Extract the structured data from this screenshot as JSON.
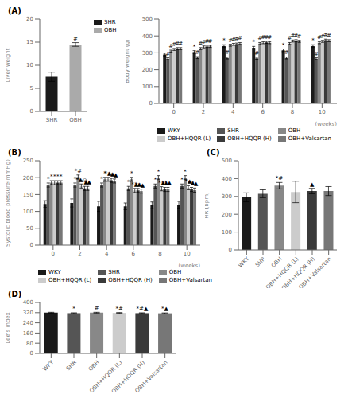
{
  "chart_data": [
    {
      "type": "bar",
      "title": "(A)",
      "categories": [
        "SHR",
        "OBH"
      ],
      "values": [
        7.5,
        14.5
      ],
      "errors": [
        1.0,
        0.4
      ],
      "colors": [
        "#1a1a1a",
        "#aaaaaa"
      ],
      "ylabel": "Liver weight",
      "ylim": [
        0,
        20
      ],
      "yticks": [
        0,
        5,
        10,
        15,
        20
      ],
      "annotations": [
        null,
        "#"
      ],
      "legend": "right"
    },
    {
      "type": "bar",
      "categories": [
        0,
        2,
        4,
        6,
        8,
        10
      ],
      "xlabel": "(weeks)",
      "ylabel": "Body weight (g)",
      "ylim": [
        0,
        500
      ],
      "yticks": [
        0,
        100,
        200,
        300,
        400,
        500
      ],
      "legend": "bottom",
      "series": [
        {
          "name": "WKY",
          "color": "#1a1a1a",
          "values": [
            290,
            305,
            340,
            330,
            315,
            340
          ],
          "errors": [
            8,
            8,
            8,
            8,
            8,
            8
          ],
          "annotations": [
            null,
            "*",
            "*",
            "*",
            "*",
            "*"
          ]
        },
        {
          "name": "SHR",
          "color": "#555555",
          "values": [
            265,
            272,
            270,
            268,
            270,
            265
          ],
          "errors": [
            6,
            6,
            6,
            6,
            6,
            6
          ],
          "annotations": [
            "#",
            "#",
            "#",
            "#",
            "#",
            "#"
          ]
        },
        {
          "name": "OBH",
          "color": "#888888",
          "values": [
            310,
            325,
            345,
            355,
            355,
            360
          ],
          "errors": [
            6,
            6,
            6,
            6,
            6,
            6
          ],
          "annotations": [
            "#",
            "#",
            "#",
            "#",
            "#",
            "#"
          ]
        },
        {
          "name": "OBH+HQQR (L)",
          "color": "#cccccc",
          "values": [
            320,
            335,
            350,
            360,
            370,
            368
          ],
          "errors": [
            6,
            6,
            6,
            6,
            6,
            6
          ],
          "annotations": [
            "#",
            "#",
            "#",
            "#",
            "#",
            "#"
          ]
        },
        {
          "name": "OBH+HQQR (H)",
          "color": "#3a3a3a",
          "values": [
            325,
            338,
            352,
            362,
            372,
            375
          ],
          "errors": [
            6,
            6,
            6,
            6,
            6,
            6
          ],
          "annotations": [
            "#",
            "#",
            "#",
            "#",
            "#",
            "#"
          ]
        },
        {
          "name": "OBH+Valsartan",
          "color": "#777777",
          "values": [
            325,
            338,
            355,
            360,
            368,
            372
          ],
          "errors": [
            6,
            6,
            6,
            6,
            6,
            6
          ],
          "annotations": [
            "#",
            "#",
            "#",
            "#",
            "#",
            "#"
          ]
        }
      ]
    },
    {
      "type": "bar",
      "title": "(B)",
      "categories": [
        0,
        2,
        4,
        6,
        8,
        10
      ],
      "xlabel": "(weeks)",
      "ylabel": "Systolic blood pressure(mmHg)",
      "ylim": [
        0,
        250
      ],
      "yticks": [
        0,
        50,
        100,
        150,
        200,
        250
      ],
      "legend": "bottom",
      "series": [
        {
          "name": "WKY",
          "color": "#1a1a1a",
          "values": [
            122,
            125,
            115,
            115,
            118,
            120
          ],
          "errors": [
            10,
            12,
            15,
            10,
            10,
            10
          ]
        },
        {
          "name": "SHR",
          "color": "#555555",
          "values": [
            178,
            178,
            178,
            168,
            175,
            175
          ],
          "errors": [
            6,
            6,
            6,
            6,
            6,
            6
          ],
          "annotations": [
            "*",
            "*",
            "*",
            "*",
            "*",
            "*"
          ]
        },
        {
          "name": "OBH",
          "color": "#888888",
          "values": [
            185,
            202,
            195,
            195,
            200,
            200
          ],
          "errors": [
            6,
            6,
            6,
            6,
            6,
            6
          ],
          "annotations": [
            "*",
            "*#",
            "*",
            "*",
            "*",
            "*"
          ]
        },
        {
          "name": "OBH+HQQR (L)",
          "color": "#cccccc",
          "values": [
            185,
            175,
            195,
            162,
            167,
            170
          ],
          "errors": [
            6,
            6,
            6,
            6,
            6,
            6
          ],
          "annotations": [
            "*",
            "*▲◇",
            "*▲",
            "*▲",
            "*▲",
            "*▲"
          ]
        },
        {
          "name": "OBH+HQQR (H)",
          "color": "#3a3a3a",
          "values": [
            185,
            168,
            192,
            162,
            165,
            165
          ],
          "errors": [
            6,
            6,
            6,
            6,
            6,
            6
          ],
          "annotations": [
            "*",
            "*▲",
            "*▲",
            "*▲",
            "*▲",
            "*▲"
          ]
        },
        {
          "name": "OBH+Valsartan",
          "color": "#777777",
          "values": [
            185,
            168,
            190,
            160,
            165,
            163
          ],
          "errors": [
            6,
            6,
            6,
            6,
            6,
            6
          ],
          "annotations": [
            "*",
            "*▲",
            "*▲",
            "*▲",
            "*▲",
            "*▲"
          ]
        }
      ]
    },
    {
      "type": "bar",
      "title": "(C)",
      "categories": [
        "WKY",
        "SHR",
        "OBH",
        "OBH+HQQR (L)",
        "OBH+HQQR (H)",
        "OBH+Valsartan"
      ],
      "values": [
        295,
        315,
        360,
        325,
        330,
        330
      ],
      "errors": [
        25,
        22,
        18,
        60,
        15,
        25
      ],
      "colors": [
        "#1a1a1a",
        "#555555",
        "#888888",
        "#cccccc",
        "#3a3a3a",
        "#777777"
      ],
      "ylabel": "HR (bpm)",
      "ylim": [
        0,
        500
      ],
      "yticks": [
        0,
        100,
        200,
        300,
        400,
        500
      ],
      "annotations": [
        null,
        null,
        "*#",
        null,
        "▲",
        null
      ]
    },
    {
      "type": "bar",
      "title": "(D)",
      "categories": [
        "WKY",
        "SHR",
        "OBH",
        "OBH+HQQR (L)",
        "OBH+HQQR (H)",
        "OBH+Valsartan"
      ],
      "values": [
        320,
        316,
        320,
        318,
        316,
        315
      ],
      "errors": [
        3,
        3,
        3,
        3,
        3,
        3
      ],
      "colors": [
        "#1a1a1a",
        "#555555",
        "#888888",
        "#cccccc",
        "#3a3a3a",
        "#777777"
      ],
      "ylabel": "Lee's index",
      "ylim": [
        0,
        400
      ],
      "yticks": [
        0,
        80,
        160,
        240,
        320,
        400
      ],
      "annotations": [
        null,
        "*",
        "#",
        "*#",
        "*#▲",
        "*▲"
      ]
    }
  ]
}
